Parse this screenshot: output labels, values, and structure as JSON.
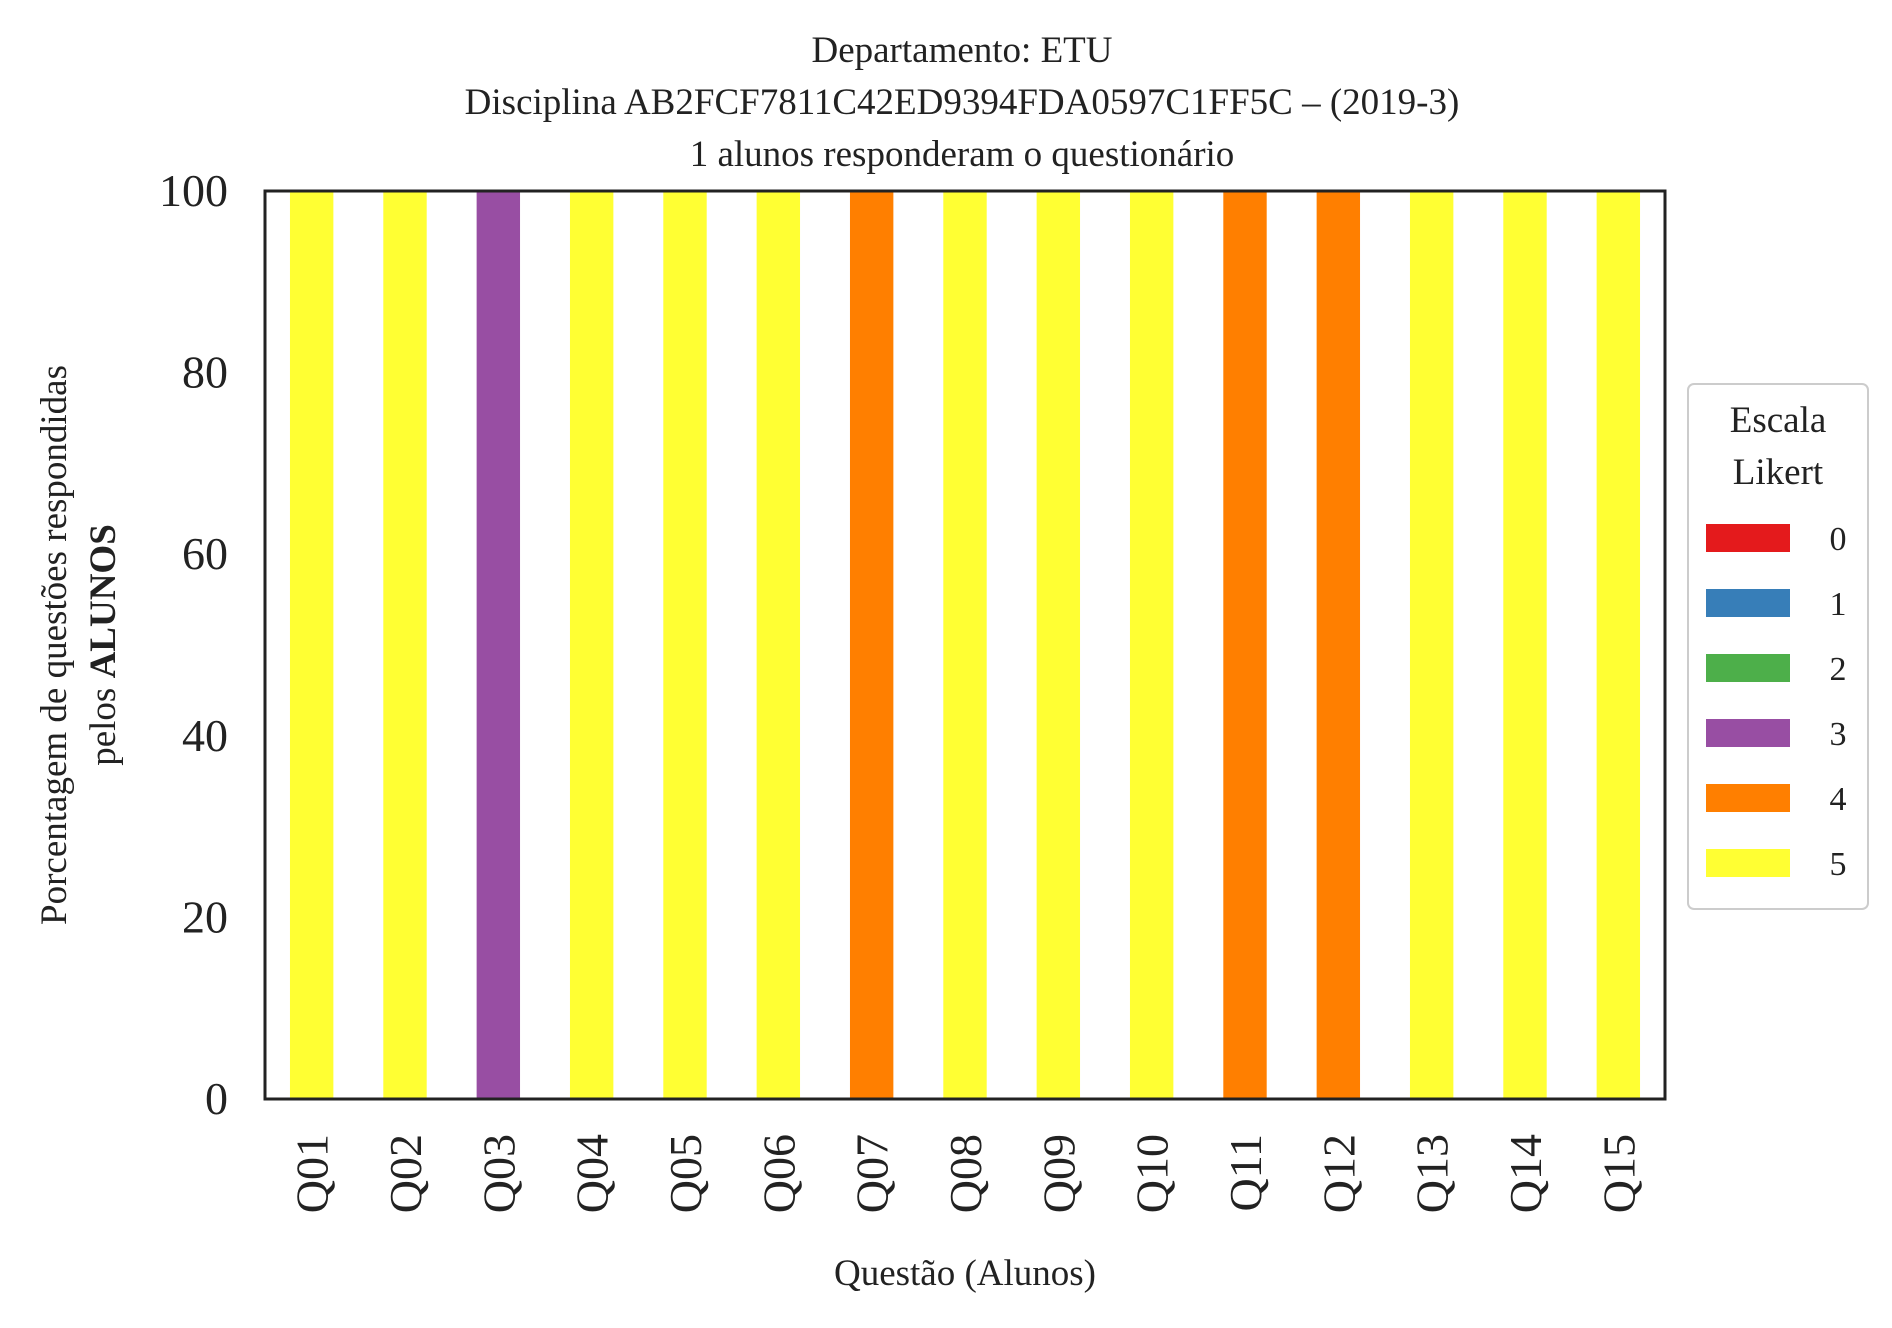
{
  "chart_data": {
    "type": "bar",
    "stacked": true,
    "title_lines": [
      "Departamento: ETU",
      "Disciplina AB2FCF7811C42ED9394FDA0597C1FF5C – (2019-3)",
      "1 alunos responderam o questionário"
    ],
    "xlabel": "Questão (Alunos)",
    "ylabel_line1": "Porcentagem de questões respondidas",
    "ylabel_line2_prefix": "pelos ",
    "ylabel_line2_bold": "ALUNOS",
    "ylim": [
      0,
      100
    ],
    "yticks": [
      "0",
      "20",
      "40",
      "60",
      "80",
      "100"
    ],
    "grid": false,
    "legend_position": "right",
    "legend_title_lines": [
      "Escala",
      "Likert"
    ],
    "categories": [
      "Q01",
      "Q02",
      "Q03",
      "Q04",
      "Q05",
      "Q06",
      "Q07",
      "Q08",
      "Q09",
      "Q10",
      "Q11",
      "Q12",
      "Q13",
      "Q14",
      "Q15"
    ],
    "series": [
      {
        "name": "0",
        "color": "#e41a1c",
        "values": [
          0,
          0,
          0,
          0,
          0,
          0,
          0,
          0,
          0,
          0,
          0,
          0,
          0,
          0,
          0
        ]
      },
      {
        "name": "1",
        "color": "#377eb8",
        "values": [
          0,
          0,
          0,
          0,
          0,
          0,
          0,
          0,
          0,
          0,
          0,
          0,
          0,
          0,
          0
        ]
      },
      {
        "name": "2",
        "color": "#4daf4a",
        "values": [
          0,
          0,
          0,
          0,
          0,
          0,
          0,
          0,
          0,
          0,
          0,
          0,
          0,
          0,
          0
        ]
      },
      {
        "name": "3",
        "color": "#984ea3",
        "values": [
          0,
          0,
          100,
          0,
          0,
          0,
          0,
          0,
          0,
          0,
          0,
          0,
          0,
          0,
          0
        ]
      },
      {
        "name": "4",
        "color": "#ff7f00",
        "values": [
          0,
          0,
          0,
          0,
          0,
          0,
          100,
          0,
          0,
          0,
          100,
          100,
          0,
          0,
          0
        ]
      },
      {
        "name": "5",
        "color": "#ffff33",
        "values": [
          100,
          100,
          0,
          100,
          100,
          100,
          0,
          100,
          100,
          100,
          0,
          0,
          100,
          100,
          100
        ]
      }
    ]
  }
}
